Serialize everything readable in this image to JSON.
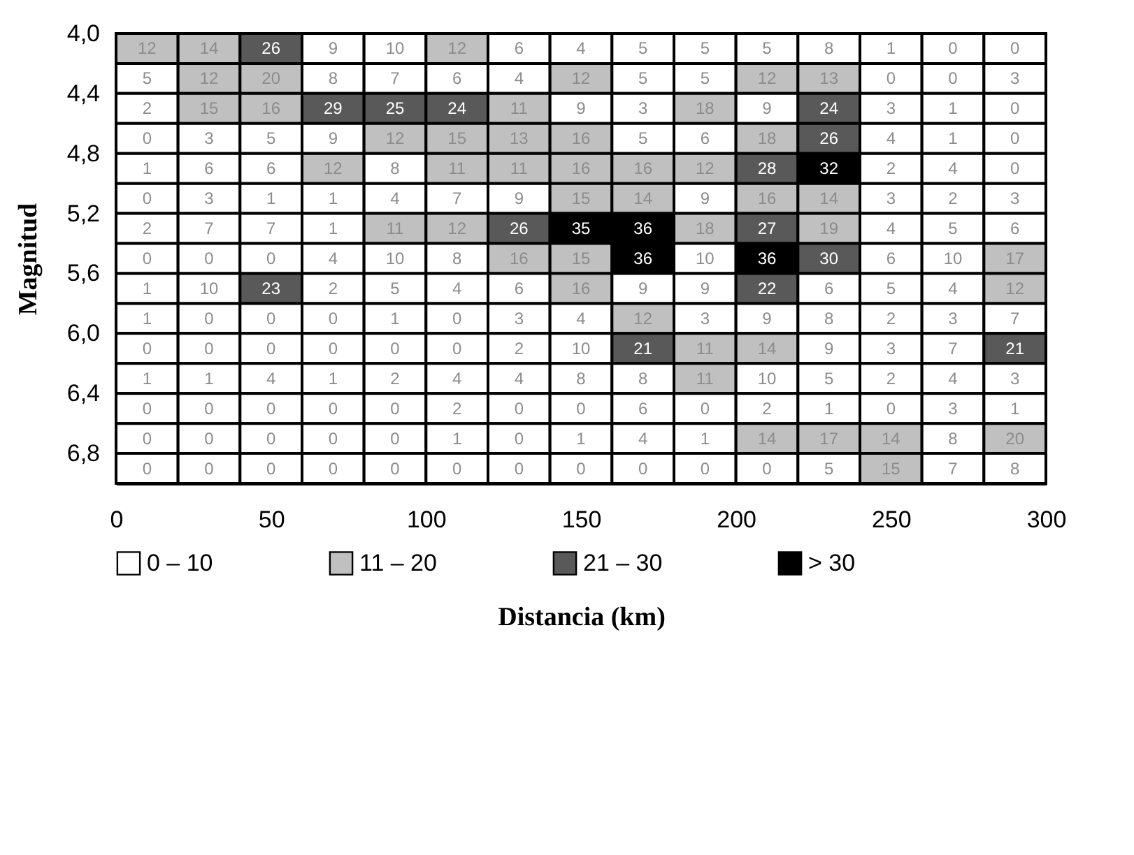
{
  "chart_data": {
    "type": "heatmap",
    "xlabel": "Distancia (km)",
    "ylabel": "Magnitud",
    "x": [
      10,
      30,
      50,
      70,
      90,
      110,
      130,
      150,
      170,
      190,
      210,
      230,
      250,
      270,
      290
    ],
    "y": [
      4.1,
      4.3,
      4.5,
      4.7,
      4.9,
      5.1,
      5.3,
      5.5,
      5.7,
      5.9,
      6.1,
      6.3,
      6.5,
      6.7,
      6.9
    ],
    "xlim": [
      0,
      300
    ],
    "xticks": [
      0,
      50,
      100,
      150,
      200,
      250,
      300
    ],
    "ylim": [
      7.0,
      4.0
    ],
    "yticks": [
      {
        "value": 4.0,
        "label": "4,0"
      },
      {
        "value": 4.4,
        "label": "4,4"
      },
      {
        "value": 4.8,
        "label": "4,8"
      },
      {
        "value": 5.2,
        "label": "5,2"
      },
      {
        "value": 5.6,
        "label": "5,6"
      },
      {
        "value": 6.0,
        "label": "6,0"
      },
      {
        "value": 6.4,
        "label": "6,4"
      },
      {
        "value": 6.8,
        "label": "6,8"
      }
    ],
    "cells": [
      [
        12,
        14,
        26,
        9,
        10,
        12,
        6,
        4,
        5,
        5,
        5,
        8,
        1,
        0,
        0
      ],
      [
        5,
        12,
        20,
        8,
        7,
        6,
        4,
        12,
        5,
        5,
        12,
        13,
        0,
        0,
        3
      ],
      [
        2,
        15,
        16,
        29,
        25,
        24,
        11,
        9,
        3,
        18,
        9,
        24,
        3,
        1,
        0
      ],
      [
        0,
        3,
        5,
        9,
        12,
        15,
        13,
        16,
        5,
        6,
        18,
        26,
        4,
        1,
        0
      ],
      [
        1,
        6,
        6,
        12,
        8,
        11,
        11,
        16,
        16,
        12,
        28,
        32,
        2,
        4,
        0
      ],
      [
        0,
        3,
        1,
        1,
        4,
        7,
        9,
        15,
        14,
        9,
        16,
        14,
        3,
        2,
        3
      ],
      [
        2,
        7,
        7,
        1,
        11,
        12,
        26,
        35,
        36,
        18,
        27,
        19,
        4,
        5,
        6
      ],
      [
        0,
        0,
        0,
        4,
        10,
        8,
        16,
        15,
        36,
        10,
        36,
        30,
        6,
        10,
        17
      ],
      [
        1,
        10,
        23,
        2,
        5,
        4,
        6,
        16,
        9,
        9,
        22,
        6,
        5,
        4,
        12
      ],
      [
        1,
        0,
        0,
        0,
        1,
        0,
        3,
        4,
        12,
        3,
        9,
        8,
        2,
        3,
        7
      ],
      [
        0,
        0,
        0,
        0,
        0,
        0,
        2,
        10,
        21,
        11,
        14,
        9,
        3,
        7,
        21
      ],
      [
        1,
        1,
        4,
        1,
        2,
        4,
        4,
        8,
        8,
        11,
        10,
        5,
        2,
        4,
        3
      ],
      [
        0,
        0,
        0,
        0,
        0,
        2,
        0,
        0,
        6,
        0,
        2,
        1,
        0,
        3,
        1
      ],
      [
        0,
        0,
        0,
        0,
        0,
        1,
        0,
        1,
        4,
        1,
        14,
        17,
        14,
        8,
        20
      ],
      [
        0,
        0,
        0,
        0,
        0,
        0,
        0,
        0,
        0,
        0,
        0,
        5,
        15,
        7,
        8
      ]
    ],
    "colors": [
      [
        "#c0c0c0",
        "#c0c0c0",
        "#595959",
        "#ffffff",
        "#ffffff",
        "#c0c0c0",
        "#ffffff",
        "#ffffff",
        "#ffffff",
        "#ffffff",
        "#ffffff",
        "#ffffff",
        "#ffffff",
        "#ffffff",
        "#ffffff"
      ],
      [
        "#ffffff",
        "#c0c0c0",
        "#c0c0c0",
        "#ffffff",
        "#ffffff",
        "#ffffff",
        "#ffffff",
        "#c0c0c0",
        "#ffffff",
        "#ffffff",
        "#c0c0c0",
        "#c0c0c0",
        "#ffffff",
        "#ffffff",
        "#ffffff"
      ],
      [
        "#ffffff",
        "#c0c0c0",
        "#c0c0c0",
        "#595959",
        "#595959",
        "#595959",
        "#c0c0c0",
        "#ffffff",
        "#ffffff",
        "#c0c0c0",
        "#ffffff",
        "#595959",
        "#ffffff",
        "#ffffff",
        "#ffffff"
      ],
      [
        "#ffffff",
        "#ffffff",
        "#ffffff",
        "#ffffff",
        "#c0c0c0",
        "#c0c0c0",
        "#c0c0c0",
        "#c0c0c0",
        "#ffffff",
        "#ffffff",
        "#c0c0c0",
        "#595959",
        "#ffffff",
        "#ffffff",
        "#ffffff"
      ],
      [
        "#ffffff",
        "#ffffff",
        "#ffffff",
        "#c0c0c0",
        "#ffffff",
        "#c0c0c0",
        "#c0c0c0",
        "#c0c0c0",
        "#c0c0c0",
        "#c0c0c0",
        "#595959",
        "#000000",
        "#ffffff",
        "#ffffff",
        "#ffffff"
      ],
      [
        "#ffffff",
        "#ffffff",
        "#ffffff",
        "#ffffff",
        "#ffffff",
        "#ffffff",
        "#ffffff",
        "#c0c0c0",
        "#c0c0c0",
        "#ffffff",
        "#c0c0c0",
        "#c0c0c0",
        "#ffffff",
        "#ffffff",
        "#ffffff"
      ],
      [
        "#ffffff",
        "#ffffff",
        "#ffffff",
        "#ffffff",
        "#c0c0c0",
        "#c0c0c0",
        "#595959",
        "#000000",
        "#000000",
        "#c0c0c0",
        "#595959",
        "#c0c0c0",
        "#ffffff",
        "#ffffff",
        "#ffffff"
      ],
      [
        "#ffffff",
        "#ffffff",
        "#ffffff",
        "#ffffff",
        "#ffffff",
        "#ffffff",
        "#c0c0c0",
        "#c0c0c0",
        "#000000",
        "#ffffff",
        "#000000",
        "#595959",
        "#ffffff",
        "#ffffff",
        "#c0c0c0"
      ],
      [
        "#ffffff",
        "#ffffff",
        "#595959",
        "#ffffff",
        "#ffffff",
        "#ffffff",
        "#ffffff",
        "#c0c0c0",
        "#ffffff",
        "#ffffff",
        "#595959",
        "#ffffff",
        "#ffffff",
        "#ffffff",
        "#c0c0c0"
      ],
      [
        "#ffffff",
        "#ffffff",
        "#ffffff",
        "#ffffff",
        "#ffffff",
        "#ffffff",
        "#ffffff",
        "#ffffff",
        "#c0c0c0",
        "#ffffff",
        "#ffffff",
        "#ffffff",
        "#ffffff",
        "#ffffff",
        "#ffffff"
      ],
      [
        "#ffffff",
        "#ffffff",
        "#ffffff",
        "#ffffff",
        "#ffffff",
        "#ffffff",
        "#ffffff",
        "#ffffff",
        "#595959",
        "#c0c0c0",
        "#c0c0c0",
        "#ffffff",
        "#ffffff",
        "#ffffff",
        "#595959"
      ],
      [
        "#ffffff",
        "#ffffff",
        "#ffffff",
        "#ffffff",
        "#ffffff",
        "#ffffff",
        "#ffffff",
        "#ffffff",
        "#ffffff",
        "#c0c0c0",
        "#ffffff",
        "#ffffff",
        "#ffffff",
        "#ffffff",
        "#ffffff"
      ],
      [
        "#ffffff",
        "#ffffff",
        "#ffffff",
        "#ffffff",
        "#ffffff",
        "#ffffff",
        "#ffffff",
        "#ffffff",
        "#ffffff",
        "#ffffff",
        "#ffffff",
        "#ffffff",
        "#ffffff",
        "#ffffff",
        "#ffffff"
      ],
      [
        "#ffffff",
        "#ffffff",
        "#ffffff",
        "#ffffff",
        "#ffffff",
        "#ffffff",
        "#ffffff",
        "#ffffff",
        "#ffffff",
        "#ffffff",
        "#c0c0c0",
        "#c0c0c0",
        "#c0c0c0",
        "#ffffff",
        "#c0c0c0"
      ],
      [
        "#ffffff",
        "#ffffff",
        "#ffffff",
        "#ffffff",
        "#ffffff",
        "#ffffff",
        "#ffffff",
        "#ffffff",
        "#ffffff",
        "#ffffff",
        "#ffffff",
        "#ffffff",
        "#c0c0c0",
        "#ffffff",
        "#ffffff"
      ]
    ],
    "series": [
      {
        "name": "0 – 10",
        "color": "#ffffff",
        "values": [
          null,
          null,
          null,
          null,
          null,
          null,
          null,
          null,
          null,
          null,
          null,
          null,
          null,
          null,
          null
        ]
      },
      {
        "name": "11 – 20",
        "color": "#c0c0c0",
        "values": [
          null,
          null,
          null,
          null,
          null,
          null,
          null,
          null,
          null,
          null,
          null,
          null,
          null,
          null,
          null
        ]
      },
      {
        "name": "21 – 30",
        "color": "#595959",
        "values": [
          null,
          null,
          null,
          null,
          null,
          null,
          null,
          null,
          null,
          null,
          null,
          null,
          null,
          null,
          null
        ]
      },
      {
        "name": "> 30",
        "color": "#000000",
        "values": [
          null,
          null,
          null,
          null,
          null,
          null,
          null,
          null,
          null,
          null,
          null,
          null,
          null,
          null,
          null
        ]
      }
    ],
    "data_labels": true,
    "legend": "bottom"
  }
}
